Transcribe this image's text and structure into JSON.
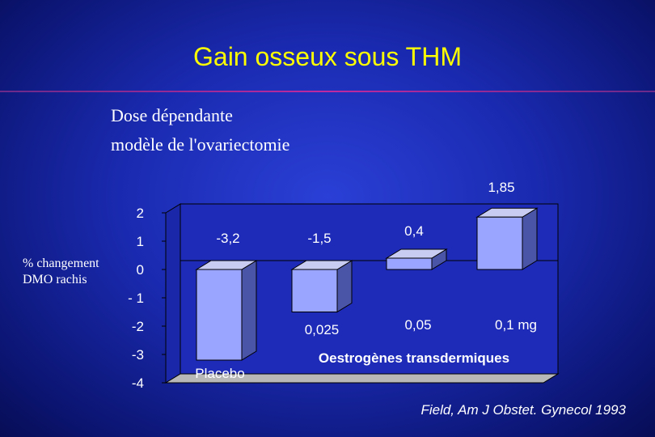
{
  "slide": {
    "title": "Gain osseux sous THM",
    "subtitle_line1": "Dose dépendante",
    "subtitle_line2": "modèle de l'ovariectomie",
    "ylabel_line1": "% changement",
    "ylabel_line2": "DMO rachis",
    "source": "Field, Am J Obstet. Gynecol 1993"
  },
  "chart_data": {
    "type": "bar",
    "title": "",
    "ylabel": "% changement DMO rachis",
    "ylim": [
      -4,
      2
    ],
    "yticks": [
      2,
      1,
      0,
      -1,
      -2,
      -3,
      -4
    ],
    "ytick_labels": [
      "2",
      "1",
      "0",
      "- 1",
      "-2",
      "-3",
      "-4"
    ],
    "categories": [
      "Placebo",
      "0,025",
      "0,05",
      "0,1 mg"
    ],
    "category_group_label": "Oestrogènes transdermiques",
    "values": [
      -3.2,
      -1.5,
      0.4,
      1.85
    ],
    "data_labels": [
      "-3,2",
      "-1,5",
      "0,4",
      "1,85"
    ],
    "grid": false,
    "bar_color": "#9aa5ff",
    "bar_side_color": "#4a55a8",
    "bar_top_color": "#c8ccf2",
    "floor_color": "#b8b8b8",
    "wall_color": "#1e2bb8"
  }
}
